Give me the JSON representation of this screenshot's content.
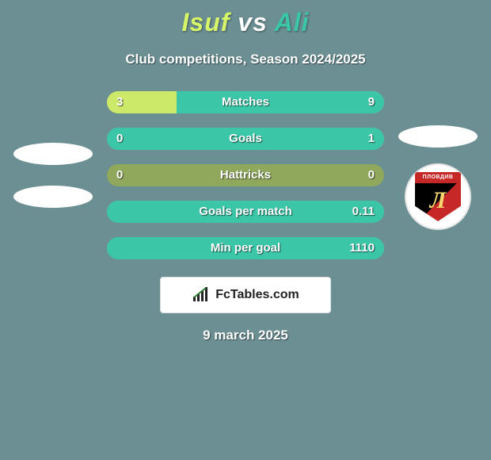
{
  "background_color": "#6b8f93",
  "title": {
    "player_left": "Isuf",
    "vs": "vs",
    "player_right": "Ali",
    "left_color": "#d7f56a",
    "vs_color": "#ffffff",
    "right_color": "#3cc6a8",
    "fontsize": 32
  },
  "subtitle": "Club competitions, Season 2024/2025",
  "left_avatars": {
    "count": 2,
    "color": "#ffffff"
  },
  "right_club_badge": {
    "top_text": "ПЛОВДИВ",
    "letter": "Л",
    "top_color": "#c62828",
    "body_left_color": "#000000",
    "body_right_color": "#c62828",
    "letter_color": "#f5d76e"
  },
  "stats": [
    {
      "label": "Matches",
      "left_value": "3",
      "right_value": "9",
      "left_pct": 25,
      "right_pct": 75
    },
    {
      "label": "Goals",
      "left_value": "0",
      "right_value": "1",
      "left_pct": 0,
      "right_pct": 100
    },
    {
      "label": "Hattricks",
      "left_value": "0",
      "right_value": "0",
      "left_pct": 0,
      "right_pct": 0
    },
    {
      "label": "Goals per match",
      "left_value": "",
      "right_value": "0.11",
      "left_pct": 0,
      "right_pct": 100
    },
    {
      "label": "Min per goal",
      "left_value": "",
      "right_value": "1110",
      "left_pct": 0,
      "right_pct": 100
    }
  ],
  "bar_style": {
    "track_color": "#8fa85b",
    "left_color": "#cce96a",
    "right_color": "#3cc6a8",
    "height": 28,
    "radius": 14,
    "text_color": "#ffffff"
  },
  "branding": {
    "text": "FcTables.com"
  },
  "date": "9 march 2025"
}
